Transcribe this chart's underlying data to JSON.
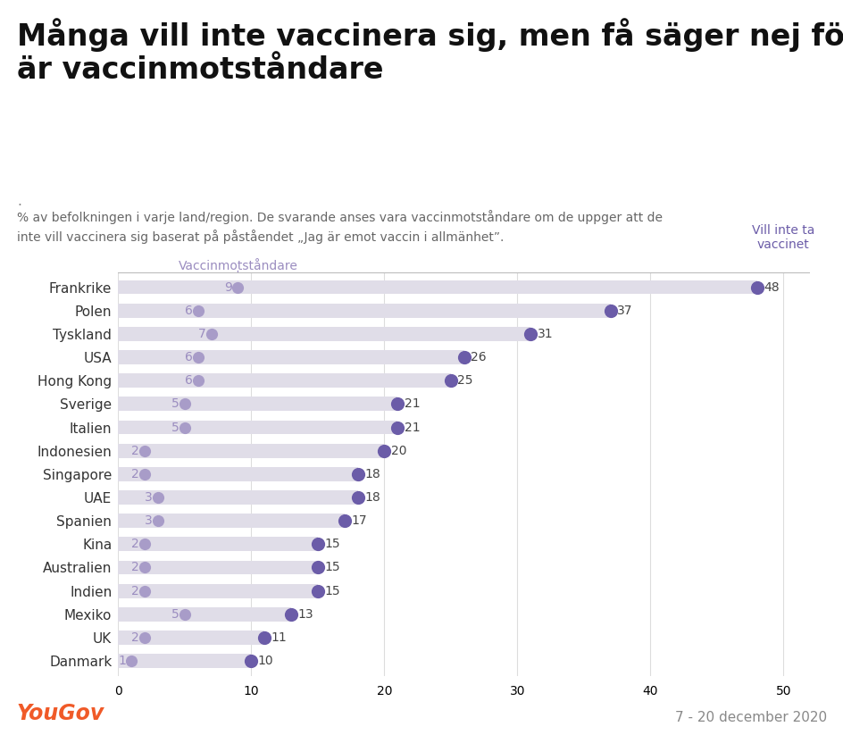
{
  "title": "Många vill inte vaccinera sig, men få säger nej för att de\när vaccinmotståndare",
  "subtitle": "% av befolkningen i varje land/region. De svarande anses vara vaccinmotståndare om de uppger att de\ninte vill vaccinera sig baserat på påståendet „Jag är emot vaccin i allmänhet”.",
  "footer_left": "YouGov",
  "footer_right": "7 - 20 december 2020",
  "label_left": "Vaccinmotståndare",
  "label_right": "Vill inte ta\nvaccinet",
  "countries": [
    "Frankrike",
    "Polen",
    "Tyskland",
    "USA",
    "Hong Kong",
    "Sverige",
    "Italien",
    "Indonesien",
    "Singapore",
    "UAE",
    "Spanien",
    "Kina",
    "Australien",
    "Indien",
    "Mexiko",
    "UK",
    "Danmark"
  ],
  "vaccine_hesitant": [
    9,
    6,
    7,
    6,
    6,
    5,
    5,
    2,
    2,
    3,
    3,
    2,
    2,
    2,
    5,
    2,
    1
  ],
  "wont_take": [
    48,
    37,
    31,
    26,
    25,
    21,
    21,
    20,
    18,
    18,
    17,
    15,
    15,
    15,
    13,
    11,
    10
  ],
  "dot_color_light": "#a89cc8",
  "dot_color_dark": "#6b5ca8",
  "bar_color": "#e0dde8",
  "bar_height": 0.6,
  "xlim": [
    0,
    52
  ],
  "xticks": [
    0,
    10,
    20,
    30,
    40,
    50
  ],
  "background_color": "#ffffff",
  "title_fontsize": 24,
  "subtitle_fontsize": 10,
  "axis_label_color": "#9b8dc0",
  "country_fontsize": 11,
  "value_fontsize": 10,
  "yougov_color": "#f05a28",
  "footer_fontsize": 11,
  "grid_color": "#dddddd"
}
